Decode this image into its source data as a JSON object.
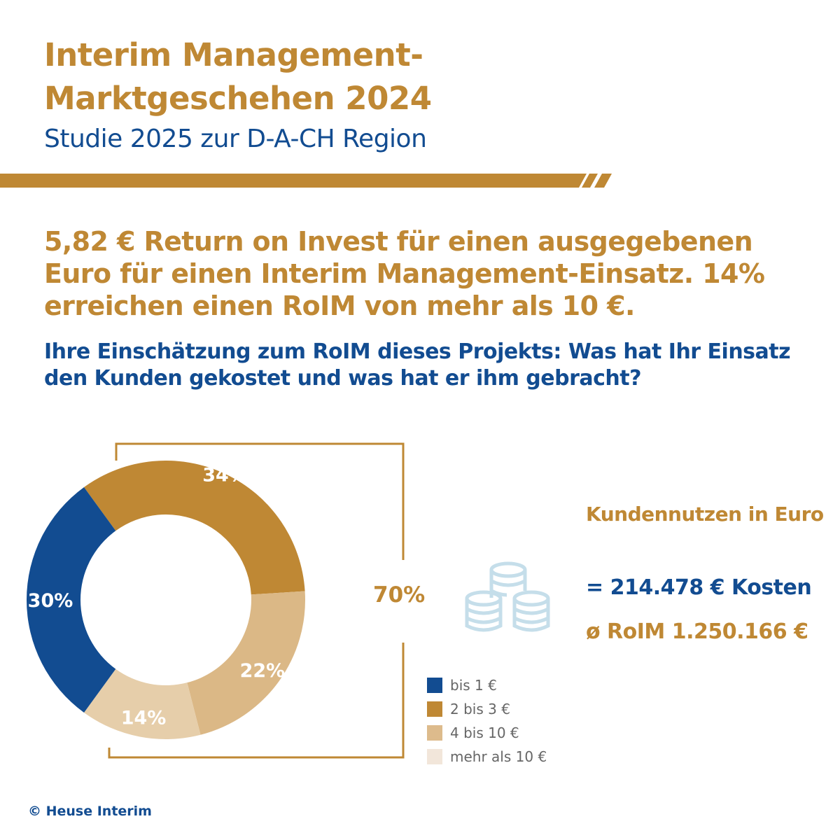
{
  "header": {
    "title_line1": "Interim Management-",
    "title_line2": "Marktgeschehen 2024",
    "subtitle": "Studie 2025 zur D-A-CH Region"
  },
  "headline": "5,82 € Return on Invest für einen ausgegebenen Euro für einen Interim Management-Einsatz. 14% erreichen einen RoIM von mehr als 10 €.",
  "question": "Ihre Einschätzung zum RoIM dieses Projekts: Was hat Ihr Einsatz den Kunden gekostet und was hat er ihm gebracht?",
  "colors": {
    "gold": "#BF8834",
    "blue": "#124C91",
    "coin_icon": "#C5DEEA"
  },
  "chart_data": {
    "type": "pie",
    "variant": "donut",
    "categories": [
      "2 bis 3 €",
      "4 bis 10 €",
      "mehr als 10 €",
      "bis 1 €"
    ],
    "values": [
      34,
      22,
      14,
      30
    ],
    "labels": [
      "34%",
      "22%",
      "14%",
      "30%"
    ],
    "colors": [
      "#BF8834",
      "#DBB886",
      "#E6CEAA",
      "#124C91"
    ],
    "legend": [
      {
        "label": "bis 1 €",
        "color": "#124C91"
      },
      {
        "label": "2 bis 3 €",
        "color": "#BF8834"
      },
      {
        "label": "4 bis 10 €",
        "color": "#DDBB8C"
      },
      {
        "label": "mehr als 10 €",
        "color": "#F2E6DA"
      }
    ],
    "legend_placement": "bottom-right",
    "bracket_annotation": "70%"
  },
  "right_panel": {
    "heading": "Kundennutzen in Euro",
    "icon": "coins-stack-icon",
    "costs": "= 214.478 € Kosten",
    "roim": "ø RoIM 1.250.166 €"
  },
  "footer": {
    "copyright": "© Heuse Interim"
  }
}
